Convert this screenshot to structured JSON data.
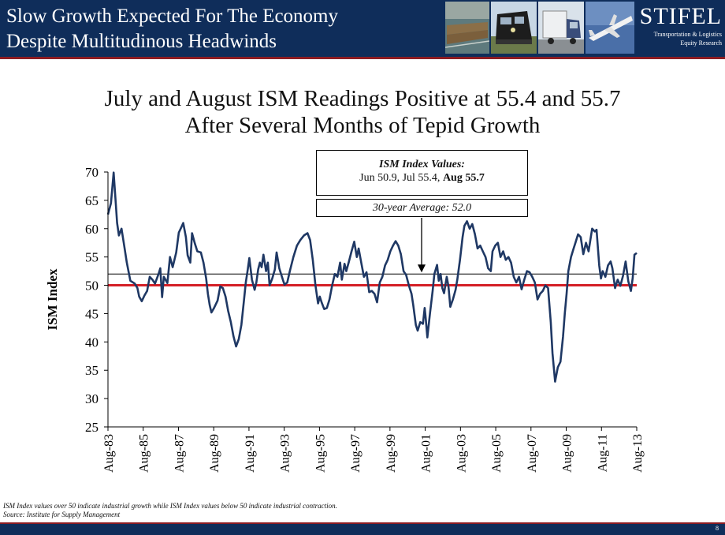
{
  "header": {
    "title_line1": "Slow Growth Expected For The Economy",
    "title_line2": "Despite Multitudinous Headwinds",
    "brand_name": "STIFEL",
    "brand_sub1": "Transportation & Logistics",
    "brand_sub2": "Equity Research",
    "photos": [
      "barge-photo",
      "train-photo",
      "truck-photo",
      "airplane-photo"
    ]
  },
  "slide": {
    "title_line1": "July and August ISM Readings Positive at 55.4 and 55.7",
    "title_line2": "After Several Months of Tepid Growth"
  },
  "callout": {
    "heading": "ISM Index Values:",
    "jun": "Jun 50.9,",
    "jul": "Jul 55.4,",
    "aug": "Aug 55.7",
    "average": "30-year Average: 52.0"
  },
  "footnote": {
    "line1": "ISM Index values over 50 indicate industrial growth while ISM Index values below 50 indicate industrial contraction.",
    "line2": "Source: Institute for Supply Management"
  },
  "footer": {
    "page_number": "8"
  },
  "colors": {
    "navy": "#0f2d5a",
    "series": "#1f3864",
    "threshold": "#d41f26",
    "accent": "#8c1c22"
  },
  "chart_data": {
    "type": "line",
    "ylabel": "ISM Index",
    "ylim": [
      25,
      70
    ],
    "yticks": [
      25,
      30,
      35,
      40,
      45,
      50,
      55,
      60,
      65,
      70
    ],
    "xlim": [
      1983.58,
      2013.58
    ],
    "xticks": [
      {
        "label": "Aug-83",
        "x": 1983.58
      },
      {
        "label": "Aug-85",
        "x": 1985.58
      },
      {
        "label": "Aug-87",
        "x": 1987.58
      },
      {
        "label": "Aug-89",
        "x": 1989.58
      },
      {
        "label": "Aug-91",
        "x": 1991.58
      },
      {
        "label": "Aug-93",
        "x": 1993.58
      },
      {
        "label": "Aug-95",
        "x": 1995.58
      },
      {
        "label": "Aug-97",
        "x": 1997.58
      },
      {
        "label": "Aug-99",
        "x": 1999.58
      },
      {
        "label": "Aug-01",
        "x": 2001.58
      },
      {
        "label": "Aug-03",
        "x": 2003.58
      },
      {
        "label": "Aug-05",
        "x": 2005.58
      },
      {
        "label": "Aug-07",
        "x": 2007.58
      },
      {
        "label": "Aug-09",
        "x": 2009.58
      },
      {
        "label": "Aug-11",
        "x": 2011.58
      },
      {
        "label": "Aug-13",
        "x": 2013.58
      }
    ],
    "reference_lines": [
      {
        "y": 52.0,
        "color": "#000000"
      },
      {
        "y": 50.0,
        "color": "#d41f26"
      }
    ],
    "series": [
      {
        "color": "#1f3864",
        "points": [
          [
            1983.58,
            62.5
          ],
          [
            1983.75,
            64.5
          ],
          [
            1983.9,
            69.9
          ],
          [
            1984.0,
            65.5
          ],
          [
            1984.1,
            61.0
          ],
          [
            1984.2,
            58.8
          ],
          [
            1984.35,
            60.0
          ],
          [
            1984.5,
            57.0
          ],
          [
            1984.65,
            54.0
          ],
          [
            1984.85,
            50.8
          ],
          [
            1985.1,
            50.3
          ],
          [
            1985.25,
            49.5
          ],
          [
            1985.35,
            48.0
          ],
          [
            1985.5,
            47.2
          ],
          [
            1985.65,
            48.2
          ],
          [
            1985.8,
            49.0
          ],
          [
            1985.95,
            51.5
          ],
          [
            1986.1,
            51.0
          ],
          [
            1986.25,
            50.3
          ],
          [
            1986.45,
            52.0
          ],
          [
            1986.55,
            53.0
          ],
          [
            1986.65,
            47.9
          ],
          [
            1986.75,
            51.5
          ],
          [
            1986.95,
            50.4
          ],
          [
            1987.1,
            55.0
          ],
          [
            1987.25,
            53.2
          ],
          [
            1987.45,
            55.8
          ],
          [
            1987.6,
            59.3
          ],
          [
            1987.75,
            60.3
          ],
          [
            1987.85,
            61.0
          ],
          [
            1988.0,
            58.5
          ],
          [
            1988.1,
            55.3
          ],
          [
            1988.25,
            54.0
          ],
          [
            1988.35,
            59.2
          ],
          [
            1988.5,
            57.5
          ],
          [
            1988.65,
            56.0
          ],
          [
            1988.85,
            55.8
          ],
          [
            1989.0,
            54.0
          ],
          [
            1989.15,
            51.2
          ],
          [
            1989.25,
            48.5
          ],
          [
            1989.35,
            46.5
          ],
          [
            1989.45,
            45.2
          ],
          [
            1989.6,
            46.0
          ],
          [
            1989.8,
            47.3
          ],
          [
            1989.95,
            49.8
          ],
          [
            1990.1,
            49.5
          ],
          [
            1990.25,
            48.0
          ],
          [
            1990.4,
            45.5
          ],
          [
            1990.55,
            43.5
          ],
          [
            1990.7,
            41.0
          ],
          [
            1990.85,
            39.2
          ],
          [
            1991.0,
            40.5
          ],
          [
            1991.15,
            43.0
          ],
          [
            1991.3,
            47.5
          ],
          [
            1991.4,
            50.5
          ],
          [
            1991.5,
            52.5
          ],
          [
            1991.6,
            54.8
          ],
          [
            1991.75,
            51.0
          ],
          [
            1991.9,
            49.2
          ],
          [
            1992.0,
            50.5
          ],
          [
            1992.1,
            52.8
          ],
          [
            1992.2,
            54.0
          ],
          [
            1992.3,
            53.2
          ],
          [
            1992.4,
            55.4
          ],
          [
            1992.55,
            52.5
          ],
          [
            1992.65,
            54.0
          ],
          [
            1992.75,
            50.0
          ],
          [
            1992.9,
            51.2
          ],
          [
            1993.05,
            52.8
          ],
          [
            1993.15,
            55.8
          ],
          [
            1993.3,
            53.0
          ],
          [
            1993.5,
            51.0
          ],
          [
            1993.6,
            50.1
          ],
          [
            1993.75,
            50.5
          ],
          [
            1993.9,
            52.5
          ],
          [
            1994.1,
            55.0
          ],
          [
            1994.3,
            57.0
          ],
          [
            1994.5,
            58.0
          ],
          [
            1994.7,
            58.8
          ],
          [
            1994.9,
            59.2
          ],
          [
            1995.05,
            58.0
          ],
          [
            1995.2,
            54.5
          ],
          [
            1995.35,
            50.0
          ],
          [
            1995.5,
            46.8
          ],
          [
            1995.6,
            48.0
          ],
          [
            1995.7,
            47.0
          ],
          [
            1995.85,
            45.8
          ],
          [
            1996.0,
            46.0
          ],
          [
            1996.15,
            47.5
          ],
          [
            1996.3,
            50.0
          ],
          [
            1996.45,
            52.0
          ],
          [
            1996.6,
            51.5
          ],
          [
            1996.75,
            54.0
          ],
          [
            1996.85,
            51.0
          ],
          [
            1997.0,
            53.8
          ],
          [
            1997.1,
            52.5
          ],
          [
            1997.25,
            54.2
          ],
          [
            1997.4,
            56.0
          ],
          [
            1997.55,
            57.7
          ],
          [
            1997.7,
            55.0
          ],
          [
            1997.8,
            56.5
          ],
          [
            1997.95,
            54.0
          ],
          [
            1998.1,
            51.5
          ],
          [
            1998.25,
            52.3
          ],
          [
            1998.4,
            48.8
          ],
          [
            1998.55,
            49.0
          ],
          [
            1998.7,
            48.5
          ],
          [
            1998.85,
            47.0
          ],
          [
            1999.0,
            50.5
          ],
          [
            1999.15,
            51.5
          ],
          [
            1999.3,
            53.5
          ],
          [
            1999.45,
            54.5
          ],
          [
            1999.6,
            56.0
          ],
          [
            1999.75,
            57.0
          ],
          [
            1999.9,
            57.8
          ],
          [
            2000.05,
            57.0
          ],
          [
            2000.2,
            55.5
          ],
          [
            2000.35,
            52.5
          ],
          [
            2000.5,
            51.8
          ],
          [
            2000.65,
            50.0
          ],
          [
            2000.8,
            48.5
          ],
          [
            2000.9,
            46.5
          ],
          [
            2001.05,
            43.0
          ],
          [
            2001.15,
            42.0
          ],
          [
            2001.3,
            43.5
          ],
          [
            2001.45,
            43.2
          ],
          [
            2001.55,
            46.0
          ],
          [
            2001.6,
            44.5
          ],
          [
            2001.7,
            40.8
          ],
          [
            2001.85,
            45.0
          ],
          [
            2002.0,
            49.0
          ],
          [
            2002.1,
            52.0
          ],
          [
            2002.25,
            53.6
          ],
          [
            2002.35,
            50.8
          ],
          [
            2002.45,
            52.0
          ],
          [
            2002.55,
            49.5
          ],
          [
            2002.65,
            48.6
          ],
          [
            2002.8,
            51.5
          ],
          [
            2002.9,
            49.8
          ],
          [
            2003.0,
            46.2
          ],
          [
            2003.15,
            47.5
          ],
          [
            2003.3,
            49.2
          ],
          [
            2003.4,
            51.0
          ],
          [
            2003.55,
            54.5
          ],
          [
            2003.7,
            58.5
          ],
          [
            2003.8,
            60.5
          ],
          [
            2003.95,
            61.3
          ],
          [
            2004.1,
            60.0
          ],
          [
            2004.25,
            60.8
          ],
          [
            2004.4,
            59.0
          ],
          [
            2004.55,
            56.5
          ],
          [
            2004.7,
            57.0
          ],
          [
            2004.85,
            56.0
          ],
          [
            2005.0,
            55.0
          ],
          [
            2005.15,
            53.0
          ],
          [
            2005.3,
            52.5
          ],
          [
            2005.4,
            56.0
          ],
          [
            2005.55,
            57.0
          ],
          [
            2005.7,
            57.5
          ],
          [
            2005.85,
            55.0
          ],
          [
            2006.0,
            56.0
          ],
          [
            2006.15,
            54.5
          ],
          [
            2006.3,
            55.0
          ],
          [
            2006.45,
            54.0
          ],
          [
            2006.6,
            51.5
          ],
          [
            2006.75,
            50.5
          ],
          [
            2006.9,
            51.5
          ],
          [
            2007.05,
            49.3
          ],
          [
            2007.2,
            51.0
          ],
          [
            2007.35,
            52.5
          ],
          [
            2007.5,
            52.3
          ],
          [
            2007.65,
            51.5
          ],
          [
            2007.8,
            50.5
          ],
          [
            2007.95,
            47.5
          ],
          [
            2008.1,
            48.5
          ],
          [
            2008.25,
            49.0
          ],
          [
            2008.4,
            50.0
          ],
          [
            2008.55,
            49.5
          ],
          [
            2008.7,
            43.5
          ],
          [
            2008.8,
            38.0
          ],
          [
            2008.95,
            33.0
          ],
          [
            2009.1,
            35.5
          ],
          [
            2009.25,
            36.5
          ],
          [
            2009.4,
            41.0
          ],
          [
            2009.5,
            45.0
          ],
          [
            2009.6,
            48.5
          ],
          [
            2009.7,
            52.5
          ],
          [
            2009.85,
            55.0
          ],
          [
            2010.0,
            56.5
          ],
          [
            2010.1,
            57.5
          ],
          [
            2010.25,
            59.0
          ],
          [
            2010.4,
            58.5
          ],
          [
            2010.55,
            55.5
          ],
          [
            2010.7,
            57.5
          ],
          [
            2010.85,
            56.0
          ],
          [
            2011.05,
            60.0
          ],
          [
            2011.2,
            59.5
          ],
          [
            2011.3,
            59.8
          ],
          [
            2011.45,
            53.5
          ],
          [
            2011.55,
            51.2
          ],
          [
            2011.65,
            52.5
          ],
          [
            2011.8,
            51.5
          ],
          [
            2011.95,
            53.5
          ],
          [
            2012.1,
            54.2
          ],
          [
            2012.2,
            53.0
          ],
          [
            2012.35,
            49.5
          ],
          [
            2012.5,
            51.0
          ],
          [
            2012.65,
            49.9
          ],
          [
            2012.8,
            51.7
          ],
          [
            2012.95,
            54.2
          ],
          [
            2013.1,
            50.7
          ],
          [
            2013.25,
            49.0
          ],
          [
            2013.35,
            51.3
          ],
          [
            2013.45,
            55.4
          ],
          [
            2013.58,
            55.7
          ]
        ]
      }
    ]
  }
}
